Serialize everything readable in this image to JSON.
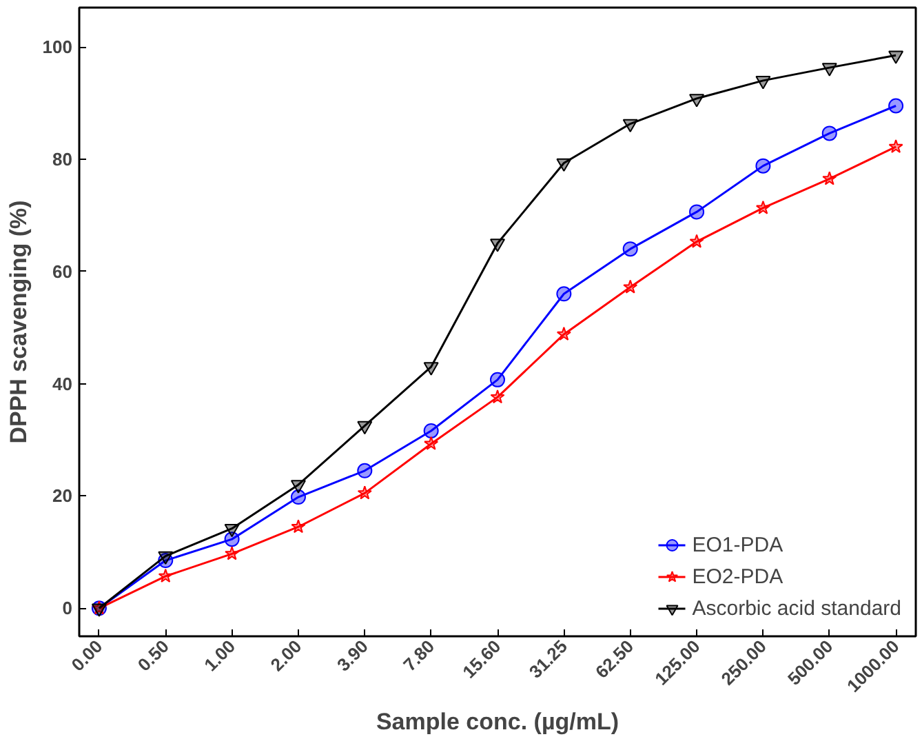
{
  "chart_data": {
    "type": "line",
    "xlabel": "Sample conc. (µg/mL)",
    "ylabel": "DPPH scavenging (%)",
    "categories": [
      "0.00",
      "0.50",
      "1.00",
      "2.00",
      "3.90",
      "7.80",
      "15.60",
      "31.25",
      "62.50",
      "125.00",
      "250.00",
      "500.00",
      "1000.00"
    ],
    "series": [
      {
        "name": "EO1-PDA",
        "color": "#0000ff",
        "marker": "circle",
        "values": [
          0,
          8.5,
          12.3,
          19.8,
          24.5,
          31.6,
          40.7,
          56,
          64,
          70.6,
          78.8,
          84.6,
          89.5
        ]
      },
      {
        "name": "EO2-PDA",
        "color": "#ff0000",
        "marker": "star",
        "values": [
          0,
          5.7,
          9.7,
          14.5,
          20.5,
          29.3,
          37.6,
          48.8,
          57.2,
          65.3,
          71.3,
          76.5,
          82.2
        ]
      },
      {
        "name": "Ascorbic acid standard",
        "color": "#000000",
        "marker": "triangle",
        "values": [
          0,
          9.3,
          14.2,
          22,
          32.5,
          43,
          65,
          79.3,
          86.3,
          90.8,
          94,
          96.3,
          98.5
        ]
      }
    ],
    "ylim": [
      -5,
      107
    ],
    "yticks": [
      0,
      20,
      40,
      60,
      80,
      100
    ],
    "grid": false,
    "legend": "bottom right"
  }
}
